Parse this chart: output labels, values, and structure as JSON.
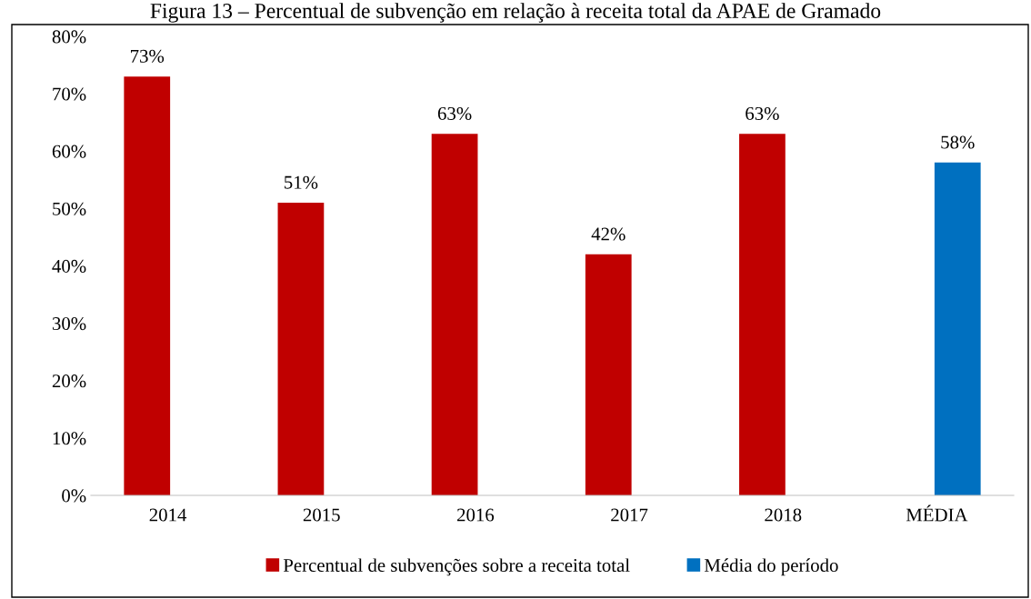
{
  "chart_data": {
    "type": "bar",
    "title": "Figura 13 – Percentual de subvenção em relação à receita total da APAE de Gramado",
    "categories": [
      "2014",
      "2015",
      "2016",
      "2017",
      "2018",
      "MÉDIA"
    ],
    "series": [
      {
        "name": "Percentual de subvenções sobre a receita total",
        "color": "#c00000",
        "values": [
          73,
          51,
          63,
          42,
          63,
          null
        ]
      },
      {
        "name": "Média do período",
        "color": "#0070c0",
        "values": [
          null,
          null,
          null,
          null,
          null,
          58
        ]
      }
    ],
    "ylim": [
      0,
      80
    ],
    "yticks": [
      {
        "value": 0,
        "label": "0%"
      },
      {
        "value": 10,
        "label": "10%"
      },
      {
        "value": 20,
        "label": "20%"
      },
      {
        "value": 30,
        "label": "30%"
      },
      {
        "value": 40,
        "label": "40%"
      },
      {
        "value": 50,
        "label": "50%"
      },
      {
        "value": 60,
        "label": "60%"
      },
      {
        "value": 70,
        "label": "70%"
      },
      {
        "value": 80,
        "label": "80%"
      }
    ],
    "value_labels": [
      [
        "73%",
        "51%",
        "63%",
        "42%",
        "63%",
        null
      ],
      [
        null,
        null,
        null,
        null,
        null,
        "58%"
      ]
    ],
    "grid": false,
    "legend": "bottom"
  }
}
